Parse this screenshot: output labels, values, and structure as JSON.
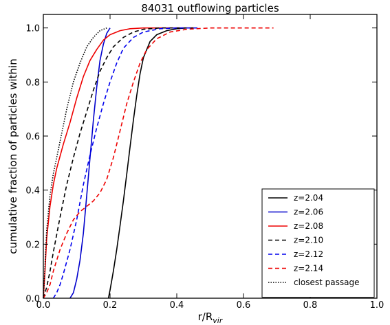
{
  "chart_data": {
    "type": "line",
    "title": "84031 outflowing particles",
    "xlabel": "r/R",
    "xlabel_sub": "vir",
    "ylabel": "cumulative fraction of particles within",
    "xlim": [
      0.0,
      1.0
    ],
    "ylim": [
      0.0,
      1.05
    ],
    "xticks": [
      "0.0",
      "0.2",
      "0.4",
      "0.6",
      "0.8",
      "1.0"
    ],
    "yticks": [
      "0.0",
      "0.2",
      "0.4",
      "0.6",
      "0.8",
      "1.0"
    ],
    "grid": false,
    "legend_position": "lower-right",
    "series": [
      {
        "name": "z=2.04",
        "color": "#000000",
        "dash": "solid",
        "points": [
          [
            0.195,
            0.0
          ],
          [
            0.2,
            0.03
          ],
          [
            0.21,
            0.1
          ],
          [
            0.22,
            0.18
          ],
          [
            0.23,
            0.27
          ],
          [
            0.24,
            0.36
          ],
          [
            0.25,
            0.46
          ],
          [
            0.26,
            0.56
          ],
          [
            0.27,
            0.66
          ],
          [
            0.28,
            0.75
          ],
          [
            0.29,
            0.83
          ],
          [
            0.3,
            0.89
          ],
          [
            0.32,
            0.95
          ],
          [
            0.34,
            0.975
          ],
          [
            0.37,
            0.99
          ],
          [
            0.4,
            0.997
          ],
          [
            0.43,
            1.0
          ]
        ]
      },
      {
        "name": "z=2.06",
        "color": "#0000cc",
        "dash": "solid",
        "points": [
          [
            0.08,
            0.0
          ],
          [
            0.09,
            0.02
          ],
          [
            0.1,
            0.07
          ],
          [
            0.11,
            0.14
          ],
          [
            0.12,
            0.24
          ],
          [
            0.13,
            0.38
          ],
          [
            0.14,
            0.52
          ],
          [
            0.15,
            0.66
          ],
          [
            0.16,
            0.78
          ],
          [
            0.17,
            0.88
          ],
          [
            0.18,
            0.94
          ],
          [
            0.19,
            0.98
          ],
          [
            0.2,
            1.0
          ]
        ]
      },
      {
        "name": "z=2.08",
        "color": "#ee0000",
        "dash": "solid",
        "points": [
          [
            0.0,
            0.0
          ],
          [
            0.005,
            0.1
          ],
          [
            0.01,
            0.22
          ],
          [
            0.02,
            0.34
          ],
          [
            0.03,
            0.42
          ],
          [
            0.04,
            0.48
          ],
          [
            0.06,
            0.57
          ],
          [
            0.08,
            0.65
          ],
          [
            0.1,
            0.74
          ],
          [
            0.12,
            0.82
          ],
          [
            0.14,
            0.88
          ],
          [
            0.16,
            0.92
          ],
          [
            0.18,
            0.955
          ],
          [
            0.2,
            0.975
          ],
          [
            0.23,
            0.99
          ],
          [
            0.26,
            0.997
          ],
          [
            0.3,
            1.0
          ],
          [
            0.45,
            1.0
          ]
        ]
      },
      {
        "name": "z=2.10",
        "color": "#000000",
        "dash": "dashed",
        "points": [
          [
            0.0,
            0.0
          ],
          [
            0.01,
            0.04
          ],
          [
            0.02,
            0.1
          ],
          [
            0.03,
            0.17
          ],
          [
            0.05,
            0.3
          ],
          [
            0.07,
            0.42
          ],
          [
            0.09,
            0.52
          ],
          [
            0.11,
            0.61
          ],
          [
            0.13,
            0.69
          ],
          [
            0.15,
            0.77
          ],
          [
            0.17,
            0.84
          ],
          [
            0.19,
            0.89
          ],
          [
            0.21,
            0.93
          ],
          [
            0.24,
            0.965
          ],
          [
            0.27,
            0.985
          ],
          [
            0.3,
            0.995
          ],
          [
            0.35,
            1.0
          ],
          [
            0.45,
            1.0
          ]
        ]
      },
      {
        "name": "z=2.12",
        "color": "#0000ee",
        "dash": "dashed",
        "points": [
          [
            0.03,
            0.0
          ],
          [
            0.04,
            0.02
          ],
          [
            0.05,
            0.05
          ],
          [
            0.06,
            0.09
          ],
          [
            0.08,
            0.18
          ],
          [
            0.1,
            0.29
          ],
          [
            0.12,
            0.42
          ],
          [
            0.14,
            0.53
          ],
          [
            0.16,
            0.63
          ],
          [
            0.18,
            0.72
          ],
          [
            0.2,
            0.8
          ],
          [
            0.22,
            0.87
          ],
          [
            0.24,
            0.925
          ],
          [
            0.27,
            0.965
          ],
          [
            0.3,
            0.985
          ],
          [
            0.35,
            0.997
          ],
          [
            0.4,
            1.0
          ],
          [
            0.47,
            1.0
          ]
        ]
      },
      {
        "name": "z=2.14",
        "color": "#ee0000",
        "dash": "dashed",
        "points": [
          [
            0.0,
            0.0
          ],
          [
            0.01,
            0.02
          ],
          [
            0.02,
            0.05
          ],
          [
            0.03,
            0.1
          ],
          [
            0.05,
            0.18
          ],
          [
            0.07,
            0.24
          ],
          [
            0.09,
            0.29
          ],
          [
            0.11,
            0.32
          ],
          [
            0.13,
            0.34
          ],
          [
            0.15,
            0.36
          ],
          [
            0.17,
            0.39
          ],
          [
            0.19,
            0.44
          ],
          [
            0.21,
            0.52
          ],
          [
            0.23,
            0.62
          ],
          [
            0.25,
            0.72
          ],
          [
            0.27,
            0.8
          ],
          [
            0.29,
            0.87
          ],
          [
            0.31,
            0.92
          ],
          [
            0.34,
            0.96
          ],
          [
            0.38,
            0.985
          ],
          [
            0.43,
            0.995
          ],
          [
            0.5,
            1.0
          ],
          [
            0.69,
            1.0
          ]
        ]
      },
      {
        "name": "closest passage",
        "color": "#000000",
        "dash": "dotted",
        "points": [
          [
            0.0,
            0.0
          ],
          [
            0.005,
            0.12
          ],
          [
            0.01,
            0.25
          ],
          [
            0.02,
            0.38
          ],
          [
            0.03,
            0.46
          ],
          [
            0.05,
            0.58
          ],
          [
            0.07,
            0.7
          ],
          [
            0.09,
            0.8
          ],
          [
            0.11,
            0.87
          ],
          [
            0.13,
            0.93
          ],
          [
            0.15,
            0.965
          ],
          [
            0.17,
            0.99
          ],
          [
            0.19,
            1.0
          ]
        ]
      }
    ]
  }
}
